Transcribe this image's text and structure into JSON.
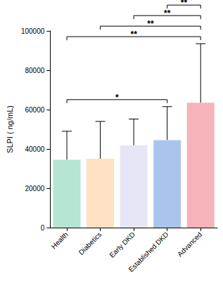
{
  "chart_data": {
    "type": "bar",
    "categories": [
      "Health",
      "Diabetics",
      "Early DKD",
      "Established DKD",
      "Advanced"
    ],
    "values": [
      34500,
      35000,
      41800,
      44500,
      63500
    ],
    "errors": [
      14500,
      19000,
      13400,
      17000,
      30000
    ],
    "colors": [
      "#b5e5d3",
      "#fde1c2",
      "#e6e6f7",
      "#a9c5ee",
      "#f6b3b9"
    ],
    "y_label": "SLPI ( ng/mL)",
    "ylim": [
      0,
      100000
    ],
    "yticks": [
      0,
      20000,
      40000,
      60000,
      80000,
      100000
    ],
    "grid": false,
    "significance": [
      {
        "from": "Health",
        "to": "Established DKD",
        "label": "*"
      },
      {
        "from": "Health",
        "to": "Advanced",
        "label": "**"
      },
      {
        "from": "Diabetics",
        "to": "Advanced",
        "label": "**"
      },
      {
        "from": "Early DKD",
        "to": "Advanced",
        "label": "**"
      },
      {
        "from": "Established DKD",
        "to": "Advanced",
        "label": "**"
      }
    ]
  }
}
